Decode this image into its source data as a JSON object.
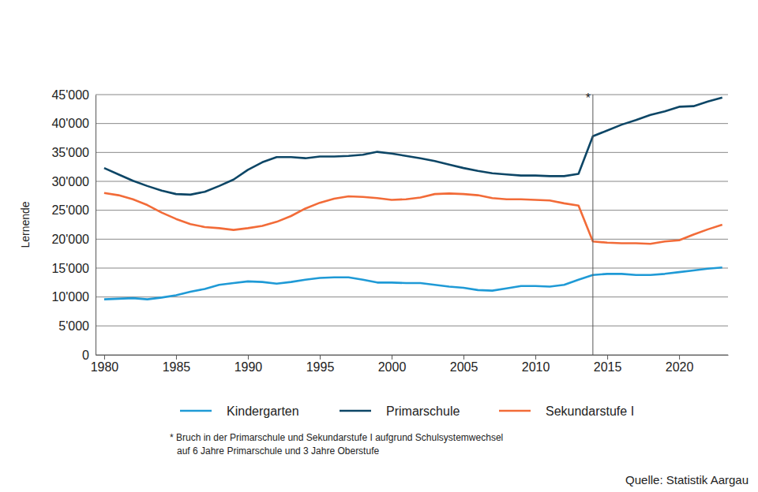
{
  "chart_data": {
    "type": "line",
    "y_label": "Lernende",
    "x": [
      1980,
      1981,
      1982,
      1983,
      1984,
      1985,
      1986,
      1987,
      1988,
      1989,
      1990,
      1991,
      1992,
      1993,
      1994,
      1995,
      1996,
      1997,
      1998,
      1999,
      2000,
      2001,
      2002,
      2003,
      2004,
      2005,
      2006,
      2007,
      2008,
      2009,
      2010,
      2011,
      2012,
      2013,
      2014,
      2015,
      2016,
      2017,
      2018,
      2019,
      2020,
      2021,
      2022,
      2023
    ],
    "series": [
      {
        "name": "Kindergarten",
        "color": "#1f9ad6",
        "values": [
          9600,
          9700,
          9800,
          9600,
          9900,
          10300,
          10900,
          11400,
          12100,
          12400,
          12700,
          12600,
          12300,
          12600,
          13000,
          13300,
          13400,
          13400,
          13000,
          12500,
          12500,
          12400,
          12400,
          12100,
          11800,
          11600,
          11200,
          11100,
          11500,
          11900,
          11900,
          11800,
          12100,
          13000,
          13800,
          14000,
          14000,
          13800,
          13800,
          14000,
          14300,
          14600,
          14900,
          15100
        ]
      },
      {
        "name": "Primarschule",
        "color": "#0d4666",
        "values": [
          32300,
          31200,
          30100,
          29200,
          28400,
          27800,
          27700,
          28200,
          29200,
          30300,
          32000,
          33300,
          34200,
          34200,
          34000,
          34300,
          34300,
          34400,
          34600,
          35100,
          34800,
          34400,
          34000,
          33500,
          32900,
          32300,
          31800,
          31400,
          31200,
          31000,
          31000,
          30900,
          30900,
          31300,
          37800,
          38800,
          39800,
          40600,
          41500,
          42100,
          42900,
          43000,
          43800,
          44500
        ]
      },
      {
        "name": "Sekundarstufe I",
        "color": "#f26b38",
        "values": [
          28000,
          27600,
          26900,
          25900,
          24600,
          23500,
          22600,
          22100,
          21900,
          21600,
          21900,
          22300,
          23000,
          24000,
          25300,
          26300,
          27000,
          27400,
          27300,
          27100,
          26800,
          26900,
          27200,
          27800,
          27900,
          27800,
          27600,
          27100,
          26900,
          26900,
          26800,
          26700,
          26200,
          25800,
          19600,
          19400,
          19300,
          19300,
          19200,
          19600,
          19800,
          20800,
          21700,
          22500
        ]
      }
    ],
    "xlim": [
      1979.4,
      2023.4
    ],
    "xticks": [
      1980,
      1985,
      1990,
      1995,
      2000,
      2005,
      2010,
      2015,
      2020
    ],
    "ylim": [
      0,
      45000
    ],
    "yticks": [
      0,
      {
        "value": 5000,
        "label": "5'000"
      },
      {
        "value": 10000,
        "label": "10'000"
      },
      {
        "value": 15000,
        "label": "15'000"
      },
      {
        "value": 20000,
        "label": "20'000"
      },
      {
        "value": 25000,
        "label": "25'000"
      },
      {
        "value": 30000,
        "label": "30'000"
      },
      {
        "value": 35000,
        "label": "35'000"
      },
      {
        "value": 40000,
        "label": "40'000"
      },
      {
        "value": 45000,
        "label": "45'000"
      }
    ],
    "grid": true,
    "legend": "bottom",
    "annotations": [
      {
        "x": 2014,
        "text": "*"
      }
    ],
    "footnote": [
      "* Bruch in der Primarschule und Sekundarstufe I aufgrund Schulsystemwechsel",
      "auf 6 Jahre Primarschule und 3 Jahre Oberstufe"
    ],
    "source": "Quelle: Statistik Aargau"
  }
}
